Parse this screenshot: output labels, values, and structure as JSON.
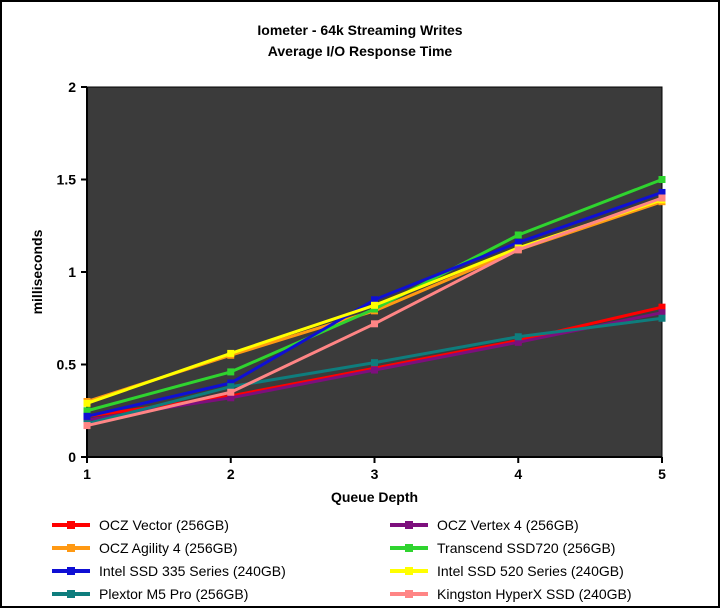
{
  "title": "Iometer - 64k Streaming Writes",
  "subtitle": "Average I/O Response Time",
  "chart_data": {
    "type": "line",
    "x": [
      1,
      2,
      3,
      4,
      5
    ],
    "xtick_labels": [
      "1",
      "2",
      "3",
      "4",
      "5"
    ],
    "ytick_values": [
      0,
      0.5,
      1,
      1.5,
      2
    ],
    "ytick_labels": [
      "0",
      "0.5",
      "1",
      "1.5",
      "2"
    ],
    "xlabel": "Queue Depth",
    "ylabel": "milliseconds",
    "ylim": [
      0,
      2
    ],
    "grid": false,
    "legend_position": "bottom",
    "plot_background": "#3b3b3b",
    "axis_color": "#000000",
    "series": [
      {
        "name": "OCZ Vector (256GB)",
        "color": "#ff0000",
        "values": [
          0.22,
          0.33,
          0.48,
          0.63,
          0.81
        ]
      },
      {
        "name": "OCZ Vertex 4 (256GB)",
        "color": "#7d0f7d",
        "values": [
          0.2,
          0.32,
          0.47,
          0.62,
          0.78
        ]
      },
      {
        "name": "OCZ Agility 4 (256GB)",
        "color": "#ff9913",
        "values": [
          0.3,
          0.55,
          0.79,
          1.12,
          1.38
        ]
      },
      {
        "name": "Transcend SSD720 (256GB)",
        "color": "#2fd42f",
        "values": [
          0.25,
          0.46,
          0.8,
          1.2,
          1.5
        ]
      },
      {
        "name": "Intel SSD 335 Series (240GB)",
        "color": "#0f0fd4",
        "values": [
          0.22,
          0.4,
          0.85,
          1.16,
          1.43
        ]
      },
      {
        "name": "Intel SSD 520 Series (240GB)",
        "color": "#ffff00",
        "values": [
          0.29,
          0.56,
          0.82,
          1.13,
          1.39
        ]
      },
      {
        "name": "Plextor M5 Pro (256GB)",
        "color": "#0e7d7d",
        "values": [
          0.18,
          0.38,
          0.51,
          0.65,
          0.75
        ]
      },
      {
        "name": "Kingston HyperX SSD (240GB)",
        "color": "#ff8585",
        "values": [
          0.17,
          0.35,
          0.72,
          1.12,
          1.4
        ]
      }
    ]
  }
}
